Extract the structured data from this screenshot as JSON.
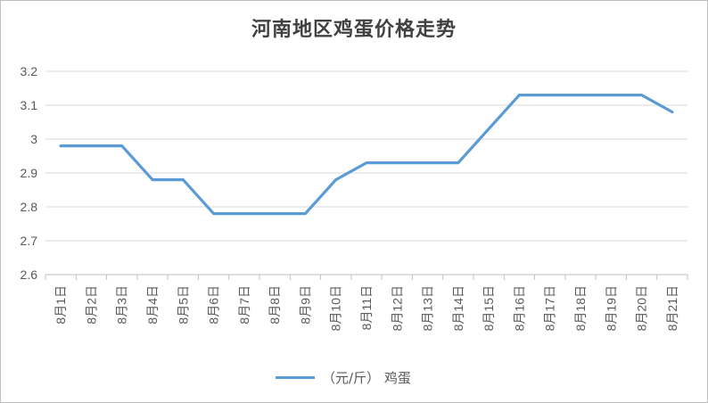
{
  "chart_data": {
    "type": "line",
    "title": "河南地区鸡蛋价格走势",
    "categories": [
      "8月1日",
      "8月2日",
      "8月3日",
      "8月4日",
      "8月5日",
      "8月6日",
      "8月7日",
      "8月8日",
      "8月9日",
      "8月10日",
      "8月11日",
      "8月12日",
      "8月13日",
      "8月14日",
      "8月15日",
      "8月16日",
      "8月17日",
      "8月18日",
      "8月19日",
      "8月20日",
      "8月21日"
    ],
    "series": [
      {
        "name": "（元/斤） 鸡蛋",
        "values": [
          2.98,
          2.98,
          2.98,
          2.88,
          2.88,
          2.78,
          2.78,
          2.78,
          2.78,
          2.88,
          2.93,
          2.93,
          2.93,
          2.93,
          3.03,
          3.13,
          3.13,
          3.13,
          3.13,
          3.13,
          3.08
        ],
        "color": "#5b9bd5"
      }
    ],
    "ylim": [
      2.6,
      3.2
    ],
    "yticks": [
      "2.6",
      "2.7",
      "2.8",
      "2.9",
      "3",
      "3.1",
      "3.2"
    ],
    "grid": true,
    "legend_position": "bottom"
  }
}
